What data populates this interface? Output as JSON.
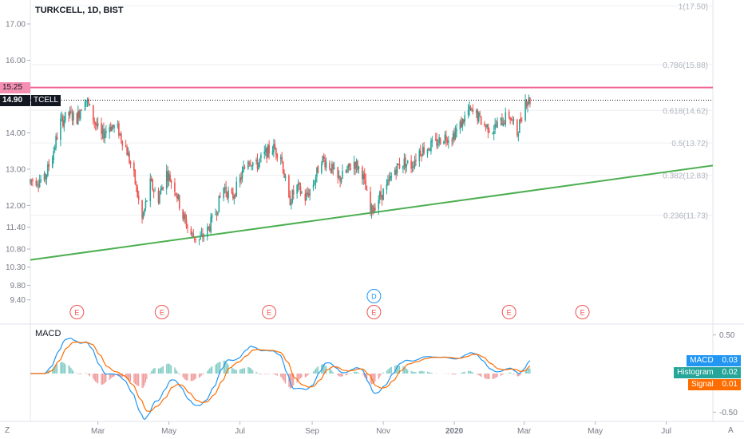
{
  "header": {
    "symbol_title": "TURKCELL, 1D, BIST",
    "ticker": "TCELL"
  },
  "price_tags": {
    "resistance_label": "15.25",
    "last_price_label": "14.90"
  },
  "macd_panel": {
    "title": "MACD",
    "legend": [
      {
        "label": "MACD",
        "value": "0.03",
        "color": "#2196f3"
      },
      {
        "label": "Histogram",
        "value": "0.02",
        "color": "#26a69a"
      },
      {
        "label": "Signal",
        "value": "0.01",
        "color": "#ff6d00"
      }
    ],
    "ticks": [
      "0.50",
      "-0.50"
    ]
  },
  "corner_labels": {
    "left": "Z",
    "right": "A"
  },
  "chart_data": {
    "type": "candlestick",
    "title": "TURKCELL, 1D, BIST",
    "y_axis_ticks": [
      "17.00",
      "16.00",
      "15.25",
      "14.90",
      "14.00",
      "13.00",
      "12.00",
      "11.40",
      "10.80",
      "10.30",
      "9.80",
      "9.40"
    ],
    "x_axis_ticks": [
      "Mar",
      "May",
      "Jul",
      "Sep",
      "Nov",
      "2020",
      "Mar",
      "May",
      "Jul"
    ],
    "colors": {
      "up": "#26a69a",
      "down": "#ef5350",
      "resistance": "#f06292",
      "trendline": "#4caf50",
      "macd": "#2196f3",
      "signal": "#ff6d00"
    },
    "close_path": [
      [
        "2019-01-14",
        12.7
      ],
      [
        "2019-01-21",
        13.4
      ],
      [
        "2019-01-28",
        14.3
      ],
      [
        "2019-02-04",
        14.5
      ],
      [
        "2019-02-11",
        14.4
      ],
      [
        "2019-02-18",
        15.0
      ],
      [
        "2019-02-25",
        14.4
      ],
      [
        "2019-03-04",
        13.9
      ],
      [
        "2019-03-11",
        14.2
      ],
      [
        "2019-03-18",
        14.1
      ],
      [
        "2019-03-25",
        13.6
      ],
      [
        "2019-04-01",
        12.8
      ],
      [
        "2019-04-08",
        11.6
      ],
      [
        "2019-04-15",
        12.6
      ],
      [
        "2019-04-22",
        12.2
      ],
      [
        "2019-04-29",
        12.9
      ],
      [
        "2019-05-06",
        12.5
      ],
      [
        "2019-05-13",
        11.7
      ],
      [
        "2019-05-20",
        11.2
      ],
      [
        "2019-05-27",
        11.05
      ],
      [
        "2019-06-03",
        11.3
      ],
      [
        "2019-06-10",
        11.8
      ],
      [
        "2019-06-17",
        12.5
      ],
      [
        "2019-06-24",
        12.2
      ],
      [
        "2019-07-01",
        12.7
      ],
      [
        "2019-07-08",
        13.3
      ],
      [
        "2019-07-15",
        13.1
      ],
      [
        "2019-07-22",
        13.4
      ],
      [
        "2019-07-29",
        13.6
      ],
      [
        "2019-08-05",
        13.4
      ],
      [
        "2019-08-12",
        12.1
      ],
      [
        "2019-08-19",
        12.5
      ],
      [
        "2019-08-26",
        12.2
      ],
      [
        "2019-09-02",
        12.6
      ],
      [
        "2019-09-09",
        13.3
      ],
      [
        "2019-09-16",
        13.1
      ],
      [
        "2019-09-23",
        12.7
      ],
      [
        "2019-09-30",
        12.9
      ],
      [
        "2019-10-07",
        13.2
      ],
      [
        "2019-10-14",
        12.9
      ],
      [
        "2019-10-21",
        11.8
      ],
      [
        "2019-10-28",
        12.2
      ],
      [
        "2019-11-04",
        12.5
      ],
      [
        "2019-11-11",
        13.0
      ],
      [
        "2019-11-18",
        13.2
      ],
      [
        "2019-11-25",
        13.1
      ],
      [
        "2019-12-02",
        13.5
      ],
      [
        "2019-12-09",
        13.6
      ],
      [
        "2019-12-16",
        13.7
      ],
      [
        "2019-12-23",
        13.9
      ],
      [
        "2019-12-30",
        13.9
      ],
      [
        "2020-01-06",
        14.2
      ],
      [
        "2020-01-13",
        14.6
      ],
      [
        "2020-01-20",
        14.5
      ],
      [
        "2020-01-27",
        14.2
      ],
      [
        "2020-02-03",
        14.1
      ],
      [
        "2020-02-10",
        14.3
      ],
      [
        "2020-02-17",
        14.5
      ],
      [
        "2020-02-24",
        14.0
      ],
      [
        "2020-03-02",
        14.9
      ]
    ],
    "horizontal_lines": [
      {
        "label": "15.25",
        "value": 15.25,
        "color": "#f06292"
      },
      {
        "label": "14.90",
        "value": 14.9,
        "style": "dotted",
        "color": "#131722"
      }
    ],
    "trendline": {
      "from": [
        "2019-01-02",
        10.5
      ],
      "to": [
        "2020-08-10",
        13.1
      ]
    },
    "fibonacci": [
      {
        "label": "1(17.50)",
        "value": 17.5
      },
      {
        "label": "0.786(15.88)",
        "value": 15.88
      },
      {
        "label": "0.618(14.62)",
        "value": 14.62
      },
      {
        "label": "0.5(13.72)",
        "value": 13.72
      },
      {
        "label": "0.382(12.83)",
        "value": 12.83
      },
      {
        "label": "0.236(11.73)",
        "value": 11.73
      }
    ],
    "events": [
      {
        "letter": "E",
        "date": "2019-02-11"
      },
      {
        "letter": "E",
        "date": "2019-04-25"
      },
      {
        "letter": "E",
        "date": "2019-07-26"
      },
      {
        "letter": "D",
        "date": "2019-10-24"
      },
      {
        "letter": "E",
        "date": "2019-10-24"
      },
      {
        "letter": "E",
        "date": "2020-02-17"
      },
      {
        "letter": "E",
        "date": "2020-04-20"
      }
    ],
    "macd": {
      "ylim": [
        -0.62,
        0.62
      ],
      "legend_values": {
        "MACD": 0.03,
        "Histogram": 0.02,
        "Signal": 0.01
      }
    }
  }
}
